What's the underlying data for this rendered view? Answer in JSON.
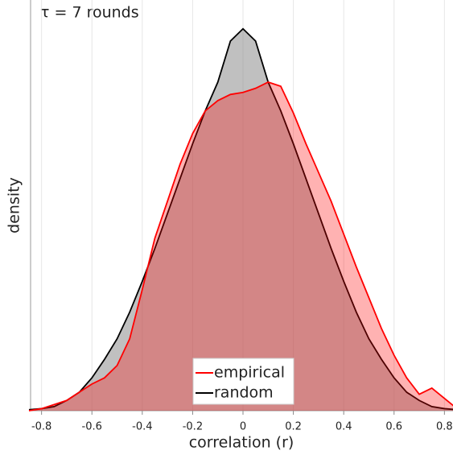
{
  "chart_data": {
    "type": "density",
    "annotation": "τ = 7 rounds",
    "x_label": "correlation (r)",
    "y_label": "density",
    "x": [
      -0.85,
      -0.8,
      -0.75,
      -0.7,
      -0.65,
      -0.6,
      -0.55,
      -0.5,
      -0.45,
      -0.4,
      -0.35,
      -0.3,
      -0.25,
      -0.2,
      -0.15,
      -0.1,
      -0.05,
      0,
      0.05,
      0.1,
      0.15,
      0.2,
      0.25,
      0.3,
      0.35,
      0.4,
      0.45,
      0.5,
      0.55,
      0.6,
      0.65,
      0.7,
      0.75,
      0.8,
      0.85
    ],
    "series": [
      {
        "name": "random",
        "color": "#000000",
        "fill": "#8c8c8c",
        "values": [
          0.005,
          0.01,
          0.02,
          0.05,
          0.09,
          0.16,
          0.25,
          0.35,
          0.48,
          0.63,
          0.79,
          0.96,
          1.13,
          1.3,
          1.46,
          1.6,
          1.8,
          1.86,
          1.8,
          1.6,
          1.46,
          1.3,
          1.13,
          0.96,
          0.79,
          0.63,
          0.48,
          0.35,
          0.25,
          0.16,
          0.09,
          0.05,
          0.02,
          0.01,
          0.005
        ]
      },
      {
        "name": "empirical",
        "color": "#ff0000",
        "fill": "#ff0000",
        "values": [
          0.0,
          0.01,
          0.03,
          0.05,
          0.09,
          0.13,
          0.16,
          0.22,
          0.35,
          0.59,
          0.84,
          1.02,
          1.2,
          1.35,
          1.46,
          1.51,
          1.54,
          1.55,
          1.57,
          1.6,
          1.58,
          1.45,
          1.3,
          1.16,
          1.02,
          0.86,
          0.7,
          0.55,
          0.4,
          0.27,
          0.16,
          0.08,
          0.11,
          0.06,
          0.01
        ]
      }
    ],
    "legend_order": [
      1,
      0
    ],
    "xlim": [
      -0.85,
      0.85
    ],
    "ylim": [
      0,
      2.0
    ],
    "xticks": [
      -0.8,
      -0.6,
      -0.4,
      -0.2,
      0,
      0.2,
      0.4,
      0.6,
      0.8
    ],
    "grid": true
  }
}
